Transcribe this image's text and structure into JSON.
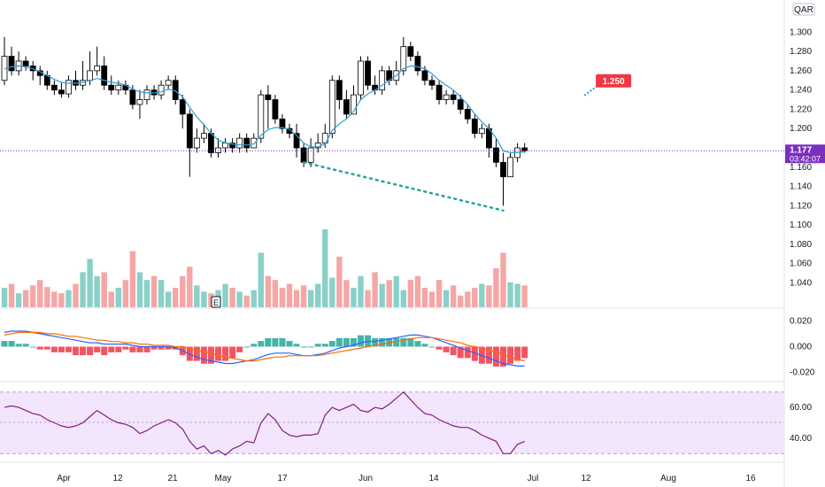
{
  "currency": "QAR",
  "colors": {
    "up": "#ffffff",
    "up_border": "#000000",
    "down": "#000000",
    "ma": "#2e9fd6",
    "trend": "#26a69a",
    "target_box": "#f23645",
    "price_label": "#7b2fbf",
    "vol_up": "#89d1c8",
    "vol_down": "#f5a6a6",
    "macd": "#2962ff",
    "signal": "#ff6d00",
    "hist_up": "#26a69a",
    "hist_down": "#f23645",
    "rsi": "#7e1f86",
    "rsi_band": "#f3e5fb"
  },
  "price_axis": [
    "1.300",
    "1.280",
    "1.260",
    "1.240",
    "1.220",
    "1.200",
    "1.160",
    "1.140",
    "1.120",
    "1.100",
    "1.080",
    "1.060",
    "1.040"
  ],
  "macd_axis": [
    "0.020",
    "0.000",
    "-0.020"
  ],
  "rsi_axis": [
    "60.00",
    "40.00"
  ],
  "date_axis": [
    "Apr",
    "12",
    "21",
    "May",
    "17",
    "Jun",
    "14",
    "Jul",
    "12",
    "Aug",
    "16"
  ],
  "last_price": "1.177",
  "countdown": "03:42:07",
  "target_label": "1.250",
  "earnings_marker": "E",
  "chart_data": {
    "type": "candlestick",
    "price_range": [
      1.09,
      1.315
    ],
    "ohlc": [
      [
        1.25,
        1.275,
        1.295,
        1.245
      ],
      [
        1.275,
        1.26,
        1.285,
        1.255
      ],
      [
        1.26,
        1.27,
        1.28,
        1.255
      ],
      [
        1.27,
        1.265,
        1.275,
        1.26
      ],
      [
        1.265,
        1.26,
        1.27,
        1.25
      ],
      [
        1.26,
        1.255,
        1.265,
        1.245
      ],
      [
        1.255,
        1.245,
        1.26,
        1.24
      ],
      [
        1.245,
        1.24,
        1.25,
        1.235
      ],
      [
        1.24,
        1.236,
        1.248,
        1.232
      ],
      [
        1.236,
        1.25,
        1.255,
        1.232
      ],
      [
        1.25,
        1.245,
        1.26,
        1.24
      ],
      [
        1.245,
        1.25,
        1.27,
        1.24
      ],
      [
        1.25,
        1.26,
        1.28,
        1.245
      ],
      [
        1.26,
        1.265,
        1.285,
        1.255
      ],
      [
        1.265,
        1.245,
        1.275,
        1.24
      ],
      [
        1.245,
        1.24,
        1.255,
        1.235
      ],
      [
        1.24,
        1.245,
        1.25,
        1.235
      ],
      [
        1.245,
        1.24,
        1.25,
        1.235
      ],
      [
        1.24,
        1.225,
        1.245,
        1.22
      ],
      [
        1.225,
        1.23,
        1.24,
        1.21
      ],
      [
        1.23,
        1.24,
        1.245,
        1.225
      ],
      [
        1.24,
        1.235,
        1.245,
        1.23
      ],
      [
        1.235,
        1.245,
        1.25,
        1.23
      ],
      [
        1.245,
        1.25,
        1.255,
        1.24
      ],
      [
        1.25,
        1.23,
        1.255,
        1.225
      ],
      [
        1.23,
        1.215,
        1.235,
        1.2
      ],
      [
        1.215,
        1.18,
        1.22,
        1.15
      ],
      [
        1.18,
        1.19,
        1.2,
        1.175
      ],
      [
        1.19,
        1.195,
        1.205,
        1.185
      ],
      [
        1.195,
        1.175,
        1.2,
        1.17
      ],
      [
        1.175,
        1.18,
        1.19,
        1.17
      ],
      [
        1.18,
        1.185,
        1.19,
        1.175
      ],
      [
        1.185,
        1.18,
        1.19,
        1.175
      ],
      [
        1.18,
        1.19,
        1.195,
        1.175
      ],
      [
        1.19,
        1.18,
        1.195,
        1.175
      ],
      [
        1.18,
        1.19,
        1.195,
        1.18
      ],
      [
        1.19,
        1.235,
        1.24,
        1.185
      ],
      [
        1.235,
        1.23,
        1.245,
        1.2
      ],
      [
        1.23,
        1.21,
        1.235,
        1.205
      ],
      [
        1.21,
        1.2,
        1.215,
        1.195
      ],
      [
        1.2,
        1.195,
        1.205,
        1.19
      ],
      [
        1.195,
        1.18,
        1.205,
        1.17
      ],
      [
        1.18,
        1.165,
        1.185,
        1.16
      ],
      [
        1.165,
        1.18,
        1.19,
        1.16
      ],
      [
        1.18,
        1.185,
        1.195,
        1.175
      ],
      [
        1.185,
        1.195,
        1.205,
        1.18
      ],
      [
        1.195,
        1.25,
        1.255,
        1.19
      ],
      [
        1.25,
        1.23,
        1.255,
        1.22
      ],
      [
        1.23,
        1.215,
        1.24,
        1.21
      ],
      [
        1.215,
        1.235,
        1.245,
        1.22
      ],
      [
        1.235,
        1.27,
        1.275,
        1.23
      ],
      [
        1.27,
        1.245,
        1.275,
        1.24
      ],
      [
        1.245,
        1.24,
        1.255,
        1.235
      ],
      [
        1.24,
        1.26,
        1.265,
        1.235
      ],
      [
        1.26,
        1.25,
        1.265,
        1.245
      ],
      [
        1.25,
        1.26,
        1.27,
        1.245
      ],
      [
        1.26,
        1.285,
        1.295,
        1.255
      ],
      [
        1.285,
        1.275,
        1.29,
        1.27
      ],
      [
        1.275,
        1.26,
        1.28,
        1.255
      ],
      [
        1.26,
        1.25,
        1.265,
        1.245
      ],
      [
        1.25,
        1.245,
        1.255,
        1.24
      ],
      [
        1.245,
        1.23,
        1.25,
        1.225
      ],
      [
        1.23,
        1.235,
        1.24,
        1.225
      ],
      [
        1.235,
        1.23,
        1.24,
        1.225
      ],
      [
        1.23,
        1.22,
        1.235,
        1.215
      ],
      [
        1.22,
        1.21,
        1.225,
        1.205
      ],
      [
        1.21,
        1.195,
        1.215,
        1.19
      ],
      [
        1.195,
        1.2,
        1.205,
        1.19
      ],
      [
        1.2,
        1.18,
        1.205,
        1.17
      ],
      [
        1.18,
        1.165,
        1.19,
        1.16
      ],
      [
        1.165,
        1.15,
        1.175,
        1.12
      ],
      [
        1.15,
        1.17,
        1.175,
        1.15
      ],
      [
        1.17,
        1.18,
        1.185,
        1.165
      ],
      [
        1.18,
        1.177,
        1.185,
        1.175
      ]
    ],
    "ma_values": [
      1.262,
      1.264,
      1.265,
      1.264,
      1.262,
      1.259,
      1.255,
      1.251,
      1.248,
      1.247,
      1.247,
      1.248,
      1.25,
      1.252,
      1.25,
      1.248,
      1.247,
      1.245,
      1.241,
      1.238,
      1.237,
      1.237,
      1.238,
      1.241,
      1.239,
      1.233,
      1.222,
      1.212,
      1.204,
      1.195,
      1.188,
      1.185,
      1.184,
      1.183,
      1.183,
      1.184,
      1.193,
      1.199,
      1.201,
      1.201,
      1.199,
      1.193,
      1.185,
      1.181,
      1.181,
      1.184,
      1.198,
      1.205,
      1.21,
      1.218,
      1.23,
      1.236,
      1.24,
      1.245,
      1.25,
      1.255,
      1.262,
      1.265,
      1.264,
      1.262,
      1.257,
      1.25,
      1.245,
      1.24,
      1.233,
      1.225,
      1.215,
      1.207,
      1.2,
      1.19,
      1.177,
      1.175,
      1.175,
      1.176
    ],
    "volume": [
      25,
      30,
      18,
      22,
      28,
      35,
      26,
      20,
      18,
      22,
      30,
      45,
      62,
      40,
      45,
      20,
      25,
      35,
      72,
      45,
      35,
      40,
      35,
      20,
      25,
      40,
      52,
      28,
      20,
      18,
      22,
      30,
      25,
      20,
      15,
      22,
      70,
      40,
      35,
      25,
      30,
      22,
      28,
      22,
      30,
      100,
      38,
      65,
      35,
      25,
      40,
      22,
      45,
      30,
      35,
      40,
      22,
      35,
      40,
      25,
      20,
      35,
      22,
      28,
      15,
      20,
      25,
      30,
      28,
      50,
      70,
      32,
      30,
      28
    ],
    "trendline": {
      "from_index": 42,
      "from_value": 1.165,
      "to_index": 70,
      "to_value": 1.115
    },
    "target": {
      "index": 82,
      "value": 1.25
    },
    "macd_range": [
      -0.025,
      0.025
    ],
    "macd": [
      0.011,
      0.012,
      0.012,
      0.012,
      0.011,
      0.01,
      0.009,
      0.008,
      0.007,
      0.006,
      0.005,
      0.004,
      0.003,
      0.003,
      0.002,
      0.002,
      0.002,
      0.002,
      0.001,
      0.0,
      0.0,
      0.0,
      0.0,
      0.0,
      -0.001,
      -0.003,
      -0.006,
      -0.008,
      -0.01,
      -0.011,
      -0.012,
      -0.013,
      -0.013,
      -0.012,
      -0.011,
      -0.01,
      -0.008,
      -0.006,
      -0.005,
      -0.005,
      -0.005,
      -0.006,
      -0.007,
      -0.007,
      -0.006,
      -0.005,
      -0.003,
      -0.001,
      0.0,
      0.001,
      0.003,
      0.004,
      0.004,
      0.005,
      0.006,
      0.007,
      0.008,
      0.009,
      0.009,
      0.008,
      0.007,
      0.005,
      0.003,
      0.001,
      -0.001,
      -0.003,
      -0.005,
      -0.007,
      -0.009,
      -0.011,
      -0.013,
      -0.014,
      -0.015,
      -0.015
    ],
    "signal": [
      0.009,
      0.01,
      0.011,
      0.011,
      0.011,
      0.011,
      0.01,
      0.01,
      0.009,
      0.008,
      0.008,
      0.007,
      0.006,
      0.005,
      0.005,
      0.004,
      0.004,
      0.003,
      0.003,
      0.002,
      0.002,
      0.001,
      0.001,
      0.001,
      0.0,
      0.0,
      -0.001,
      -0.003,
      -0.004,
      -0.005,
      -0.007,
      -0.008,
      -0.009,
      -0.01,
      -0.011,
      -0.011,
      -0.01,
      -0.009,
      -0.008,
      -0.008,
      -0.007,
      -0.007,
      -0.007,
      -0.007,
      -0.007,
      -0.006,
      -0.005,
      -0.004,
      -0.003,
      -0.002,
      -0.001,
      0.0,
      0.001,
      0.002,
      0.003,
      0.004,
      0.005,
      0.006,
      0.007,
      0.007,
      0.007,
      0.006,
      0.005,
      0.004,
      0.003,
      0.001,
      0.0,
      -0.001,
      -0.003,
      -0.004,
      -0.006,
      -0.008,
      -0.01,
      -0.011
    ],
    "rsi_range": [
      25,
      75
    ],
    "rsi_band": [
      30,
      70
    ],
    "rsi": [
      60,
      61,
      60,
      58,
      56,
      55,
      52,
      50,
      48,
      47,
      48,
      50,
      54,
      58,
      55,
      52,
      50,
      49,
      47,
      43,
      45,
      48,
      50,
      52,
      50,
      46,
      38,
      33,
      35,
      30,
      32,
      29,
      33,
      35,
      38,
      37,
      50,
      56,
      52,
      45,
      42,
      41,
      42,
      42,
      43,
      55,
      60,
      58,
      60,
      62,
      58,
      57,
      60,
      59,
      62,
      66,
      70,
      65,
      60,
      56,
      55,
      52,
      50,
      48,
      47,
      47,
      45,
      42,
      40,
      38,
      30,
      30,
      36,
      38
    ]
  }
}
